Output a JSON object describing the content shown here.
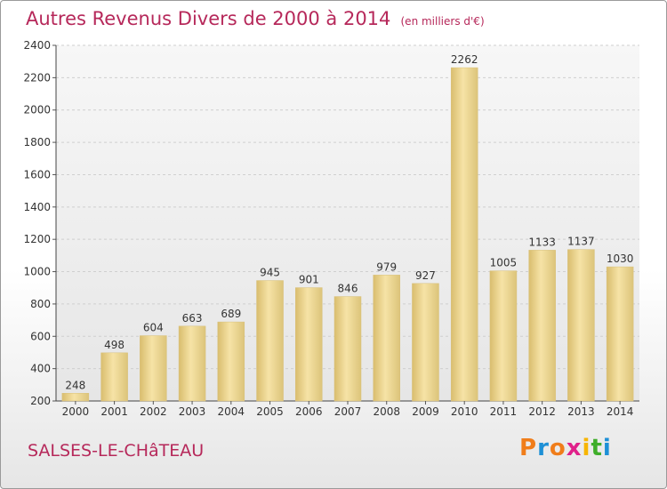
{
  "title": "Autres Revenus Divers de 2000 à 2014",
  "unit": "(en milliers d'€)",
  "town": "SALSES-LE-CHâTEAU",
  "brand": {
    "letters": [
      "P",
      "r",
      "o",
      "x",
      "i",
      "t",
      "i"
    ],
    "colors": [
      "#f07d1a",
      "#1e90d6",
      "#f07d1a",
      "#e0218a",
      "#f7b500",
      "#3fae2a",
      "#1e90d6"
    ]
  },
  "colors": {
    "bar": "#ebd188",
    "title": "#b6285a"
  },
  "chart_data": {
    "type": "bar",
    "categories": [
      "2000",
      "2001",
      "2002",
      "2003",
      "2004",
      "2005",
      "2006",
      "2007",
      "2008",
      "2009",
      "2010",
      "2011",
      "2012",
      "2013",
      "2014"
    ],
    "values": [
      248,
      498,
      604,
      663,
      689,
      945,
      901,
      846,
      979,
      927,
      2262,
      1005,
      1133,
      1137,
      1030
    ],
    "title": "Autres Revenus Divers de 2000 à 2014",
    "xlabel": "",
    "ylabel": "",
    "ylim": [
      200,
      2400
    ],
    "yticks": [
      200,
      400,
      600,
      800,
      1000,
      1200,
      1400,
      1600,
      1800,
      2000,
      2200,
      2400
    ],
    "grid": true,
    "data_labels": true
  }
}
